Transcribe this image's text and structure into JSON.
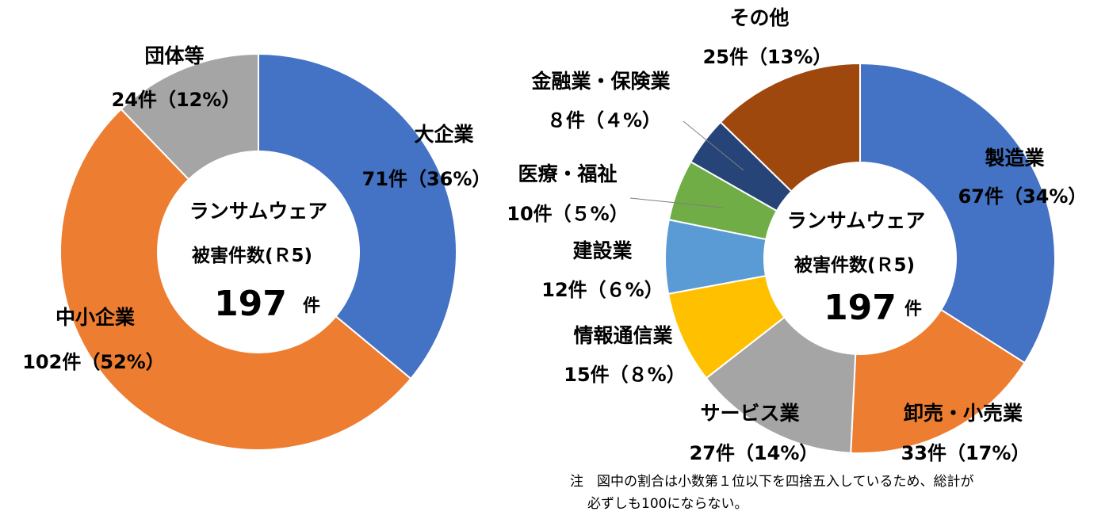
{
  "chart_data": [
    {
      "type": "donut",
      "center": {
        "line1": "ランサムウェア",
        "line2": "被害件数(Ｒ5)",
        "number": "197",
        "unit": "件"
      },
      "series": [
        {
          "label": "大企業",
          "value_text": "71件（36%）",
          "value": 71,
          "percent": 36,
          "color": "#4472C4"
        },
        {
          "label": "中小企業",
          "value_text": "102件（52%）",
          "value": 102,
          "percent": 52,
          "color": "#ED7D31"
        },
        {
          "label": "団体等",
          "value_text": "24件（12%）",
          "value": 24,
          "percent": 12,
          "color": "#A5A5A5"
        }
      ]
    },
    {
      "type": "donut",
      "center": {
        "line1": "ランサムウェア",
        "line2": "被害件数(Ｒ5)",
        "number": "197",
        "unit": "件"
      },
      "series": [
        {
          "label": "製造業",
          "value_text": "67件（34%）",
          "value": 67,
          "percent": 34,
          "color": "#4472C4"
        },
        {
          "label": "卸売・小売業",
          "value_text": "33件（17%）",
          "value": 33,
          "percent": 17,
          "color": "#ED7D31"
        },
        {
          "label": "サービス業",
          "value_text": "27件（14%）",
          "value": 27,
          "percent": 14,
          "color": "#A5A5A5"
        },
        {
          "label": "情報通信業",
          "value_text": "15件（８%）",
          "value": 15,
          "percent": 8,
          "color": "#FFC000"
        },
        {
          "label": "建設業",
          "value_text": "12件（６%）",
          "value": 12,
          "percent": 6,
          "color": "#5B9BD5"
        },
        {
          "label": "医療・福祉",
          "value_text": "10件（５%）",
          "value": 10,
          "percent": 5,
          "color": "#70AD47"
        },
        {
          "label": "金融業・保険業",
          "value_text": "８件（４%）",
          "value": 8,
          "percent": 4,
          "color": "#264478"
        },
        {
          "label": "その他",
          "value_text": "25件（13%）",
          "value": 25,
          "percent": 13,
          "color": "#9E480E"
        }
      ]
    }
  ],
  "note": {
    "line1": "注　図中の割合は小数第１位以下を四捨五入しているため、総計が",
    "line2": "必ずしも100にならない。"
  }
}
